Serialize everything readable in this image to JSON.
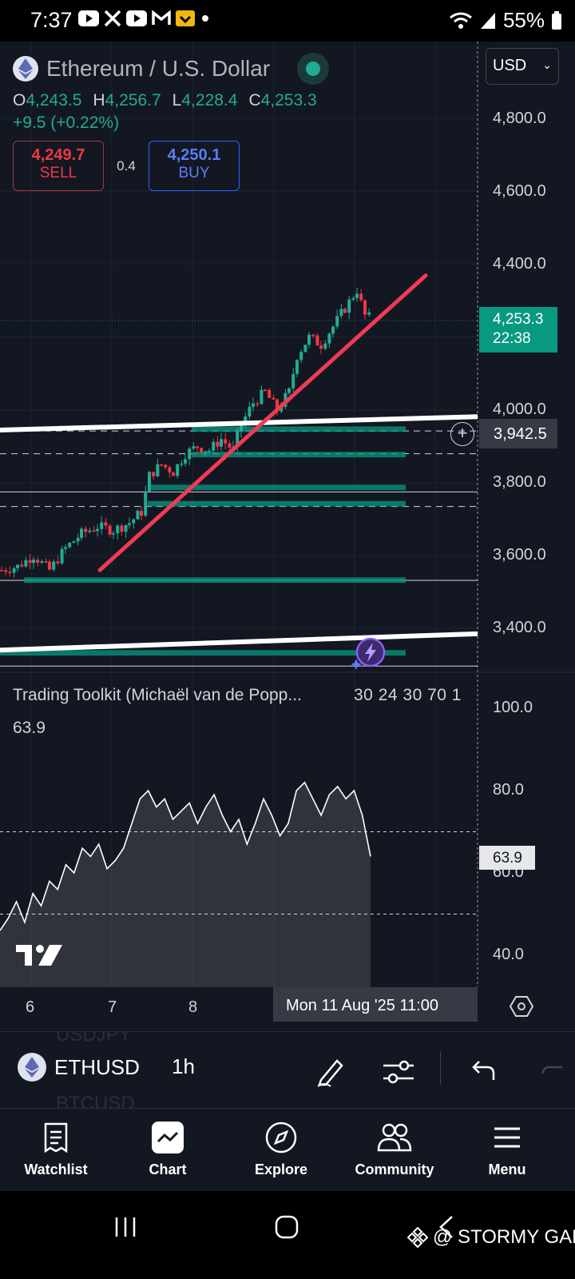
{
  "status_bar": {
    "time": "7:37",
    "battery": "55%",
    "app_icons": [
      "youtube-icon",
      "x-icon",
      "youtube-icon",
      "gmail-icon",
      "app-icon",
      "dot-icon"
    ]
  },
  "header": {
    "title": "Ethereum / U.S. Dollar",
    "ohlc": {
      "o_label": "O",
      "o": "4,243.5",
      "h_label": "H",
      "h": "4,256.7",
      "l_label": "L",
      "l": "4,228.4",
      "c_label": "C",
      "c": "4,253.3"
    },
    "change": "+9.5 (+0.22%)",
    "sell_price": "4,249.7",
    "sell_label": "SELL",
    "spread": "0.4",
    "buy_price": "4,250.1",
    "buy_label": "BUY"
  },
  "currency": "USD",
  "price_axis": [
    "4,800.0",
    "4,600.0",
    "4,400.0",
    "4,000.0",
    "3,800.0",
    "3,600.0",
    "3,400.0"
  ],
  "last_price": {
    "price": "4,253.3",
    "countdown": "22:38"
  },
  "crosshair_price": "3,942.5",
  "indicator": {
    "title": "Trading Toolkit (Michaël van de Popp...",
    "params": "30 24 30 70 1",
    "value": "63.9",
    "axis": [
      "100.0",
      "80.0",
      "60.0",
      "40.0"
    ],
    "tag": "63.9"
  },
  "time_axis": [
    "6",
    "7",
    "8"
  ],
  "crosshair_time": "Mon 11 Aug '25   11:00",
  "toolbar": {
    "symbol": "ETHUSD",
    "interval": "1h",
    "ghost_above": "USDJPY",
    "ghost_below": "BTCUSD"
  },
  "bottom_nav": [
    {
      "label": "Watchlist",
      "icon": "watchlist-icon"
    },
    {
      "label": "Chart",
      "icon": "chart-icon"
    },
    {
      "label": "Explore",
      "icon": "compass-icon"
    },
    {
      "label": "Community",
      "icon": "community-icon"
    },
    {
      "label": "Menu",
      "icon": "menu-icon"
    }
  ],
  "watermark": "@ STORMY GAL",
  "colors": {
    "background": "#131722",
    "up": "#22ab94",
    "down": "#f23645",
    "trendline": "#ef3b53",
    "zones": "#089981"
  },
  "chart_data": {
    "type": "candlestick",
    "symbol": "ETHUSD",
    "interval": "1h",
    "ylim": [
      3300,
      4900
    ],
    "x_ticks": [
      "6",
      "7",
      "8"
    ],
    "last_close": 4253.3,
    "approx_path": [
      [
        0,
        3560
      ],
      [
        20,
        3570
      ],
      [
        40,
        3600
      ],
      [
        60,
        3560
      ],
      [
        80,
        3620
      ],
      [
        100,
        3660
      ],
      [
        120,
        3680
      ],
      [
        140,
        3670
      ],
      [
        160,
        3690
      ],
      [
        175,
        3720
      ],
      [
        185,
        3820
      ],
      [
        200,
        3850
      ],
      [
        215,
        3830
      ],
      [
        230,
        3880
      ],
      [
        245,
        3900
      ],
      [
        260,
        3890
      ],
      [
        275,
        3920
      ],
      [
        290,
        3890
      ],
      [
        300,
        3960
      ],
      [
        315,
        4020
      ],
      [
        330,
        4050
      ],
      [
        345,
        4000
      ],
      [
        360,
        4050
      ],
      [
        370,
        4150
      ],
      [
        385,
        4200
      ],
      [
        400,
        4180
      ],
      [
        415,
        4230
      ],
      [
        430,
        4280
      ],
      [
        445,
        4330
      ],
      [
        455,
        4260
      ],
      [
        462,
        4253
      ]
    ],
    "trendline": {
      "from": [
        125,
        3560
      ],
      "to": [
        533,
        4370
      ]
    },
    "horizontal_levels": [
      3942.5,
      3880,
      3775,
      3735,
      3532
    ],
    "demand_zones": [
      [
        3940,
        3955
      ],
      [
        3870,
        3885
      ],
      [
        3780,
        3795
      ],
      [
        3735,
        3750
      ],
      [
        3525,
        3540
      ],
      [
        3325,
        3340
      ]
    ],
    "channel_lines": [
      {
        "from": [
          0,
          3945
        ],
        "to": [
          598,
          3982
        ]
      },
      {
        "from": [
          0,
          3340
        ],
        "to": [
          598,
          3385
        ]
      }
    ]
  },
  "indicator_chart_data": {
    "type": "line",
    "ylim": [
      30,
      105
    ],
    "levels": [
      70,
      50
    ],
    "values": [
      46,
      49,
      53,
      48,
      55,
      52,
      58,
      56,
      62,
      60,
      66,
      64,
      67,
      61,
      63,
      66,
      72,
      78,
      80,
      76,
      78,
      73,
      75,
      77,
      72,
      76,
      79,
      74,
      70,
      73,
      67,
      72,
      78,
      74,
      69,
      72,
      80,
      82,
      78,
      74,
      79,
      81,
      78,
      80,
      74,
      64
    ]
  }
}
